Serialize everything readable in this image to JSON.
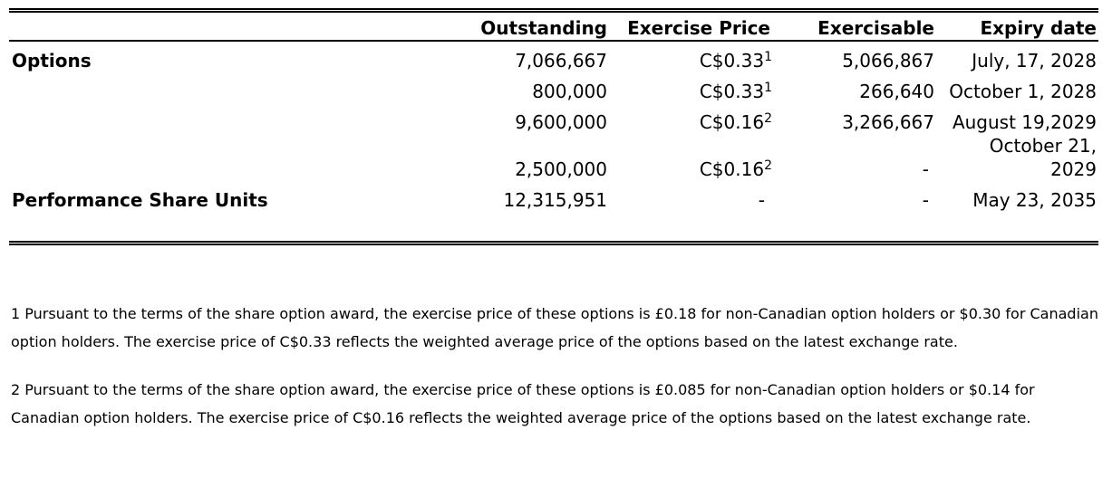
{
  "table": {
    "header": [
      null,
      "Outstanding",
      "Exercise Price",
      "Exercisable",
      "Expiry date"
    ],
    "rows": [
      [
        "Options",
        "7,066,667",
        {
          "text": "C$0.33",
          "note": "1"
        },
        "5,066,867",
        "July, 17, 2028"
      ],
      [
        null,
        "800,000",
        {
          "text": "C$0.33",
          "note": "1"
        },
        "266,640",
        "October 1, 2028"
      ],
      [
        null,
        "9,600,000",
        {
          "text": "C$0.16",
          "note": "2"
        },
        "3,266,667",
        "August 19,2029"
      ],
      [
        null,
        "2,500,000",
        {
          "text": "C$0.16",
          "note": "2"
        },
        "-",
        "October 21, 2029"
      ],
      [
        "Performance Share Units",
        "12,315,951",
        "-",
        "-",
        "May 23, 2035"
      ]
    ]
  },
  "footnotes": [
    {
      "number": "1",
      "text": "Pursuant to the terms of the share option award, the exercise price of these options is £0.18 for non-Canadian option holders or $0.30 for Canadian option holders. The exercise price of C$0.33 reflects the weighted average price of the options based on the latest exchange rate."
    },
    {
      "number": "2",
      "text": "Pursuant to the terms of the share option award, the exercise price of these options is £0.085 for non-Canadian option holders or $0.14 for Canadian option holders. The exercise price of C$0.16 reflects the weighted average price of the options based on the latest exchange rate."
    }
  ]
}
